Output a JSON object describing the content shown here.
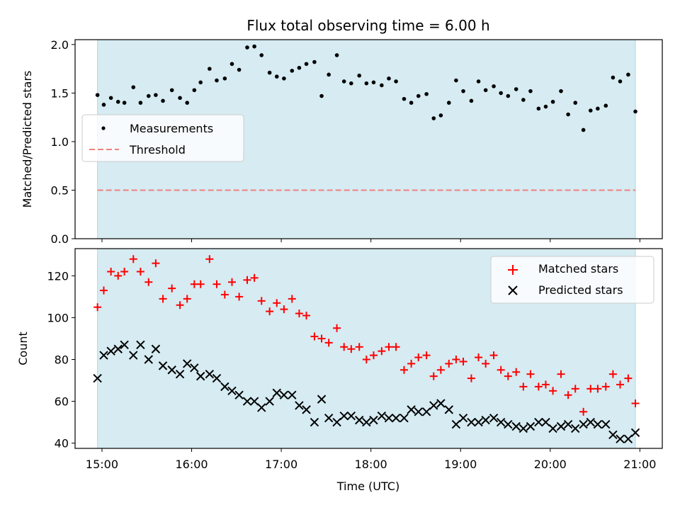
{
  "chart_data": {
    "type": "scatter",
    "title": "Flux total observing time = 6.00 h",
    "shade_color": "#add8e6",
    "time_ticks": [
      "15:00",
      "16:00",
      "17:00",
      "18:00",
      "19:00",
      "20:00",
      "21:00"
    ],
    "time_tick_hours": [
      15,
      16,
      17,
      18,
      19,
      20,
      21
    ],
    "xlabel": "Time (UTC)",
    "xlim_hours": [
      14.7,
      21.25
    ],
    "shade_hours": [
      14.95,
      20.95
    ],
    "top": {
      "ylabel": "Matched/Predicted stars",
      "ylim": [
        0,
        2.05
      ],
      "yticks": [
        0.0,
        0.5,
        1.0,
        1.5,
        2.0
      ],
      "ytick_labels": [
        "0.0",
        "0.5",
        "1.0",
        "1.5",
        "2.0"
      ],
      "threshold": 0.5,
      "threshold_color": "#f08080",
      "legend": [
        "Measurements",
        "Threshold"
      ],
      "x_hours": [
        14.95,
        15.02,
        15.1,
        15.18,
        15.25,
        15.35,
        15.43,
        15.52,
        15.6,
        15.68,
        15.78,
        15.87,
        15.95,
        16.03,
        16.1,
        16.2,
        16.28,
        16.37,
        16.45,
        16.53,
        16.62,
        16.7,
        16.78,
        16.87,
        16.95,
        17.03,
        17.12,
        17.2,
        17.28,
        17.37,
        17.45,
        17.53,
        17.62,
        17.7,
        17.78,
        17.87,
        17.95,
        18.03,
        18.12,
        18.2,
        18.28,
        18.37,
        18.45,
        18.53,
        18.62,
        18.7,
        18.78,
        18.87,
        18.95,
        19.03,
        19.12,
        19.2,
        19.28,
        19.37,
        19.45,
        19.53,
        19.62,
        19.7,
        19.78,
        19.87,
        19.95,
        20.03,
        20.12,
        20.2,
        20.28,
        20.37,
        20.45,
        20.53,
        20.62,
        20.7,
        20.78,
        20.87,
        20.95
      ],
      "ratio": [
        1.48,
        1.38,
        1.45,
        1.41,
        1.4,
        1.56,
        1.4,
        1.47,
        1.48,
        1.42,
        1.53,
        1.45,
        1.4,
        1.53,
        1.61,
        1.75,
        1.63,
        1.65,
        1.8,
        1.74,
        1.97,
        1.98,
        1.89,
        1.71,
        1.67,
        1.65,
        1.73,
        1.76,
        1.8,
        1.82,
        1.47,
        1.69,
        1.89,
        1.62,
        1.6,
        1.68,
        1.6,
        1.61,
        1.58,
        1.65,
        1.62,
        1.44,
        1.4,
        1.47,
        1.49,
        1.24,
        1.27,
        1.4,
        1.63,
        1.52,
        1.42,
        1.62,
        1.53,
        1.57,
        1.5,
        1.47,
        1.54,
        1.43,
        1.52,
        1.34,
        1.36,
        1.41,
        1.52,
        1.28,
        1.4,
        1.12,
        1.32,
        1.34,
        1.37,
        1.66,
        1.62,
        1.69,
        1.31
      ]
    },
    "bottom": {
      "ylabel": "Count",
      "ylim": [
        37.5,
        133
      ],
      "yticks": [
        40,
        60,
        80,
        100,
        120
      ],
      "ytick_labels": [
        "40",
        "60",
        "80",
        "100",
        "120"
      ],
      "legend": [
        "Matched stars",
        "Predicted stars"
      ],
      "matched_color": "#ff0000",
      "predicted_color": "#000000",
      "x_hours": [
        14.95,
        15.02,
        15.1,
        15.18,
        15.25,
        15.35,
        15.43,
        15.52,
        15.6,
        15.68,
        15.78,
        15.87,
        15.95,
        16.03,
        16.1,
        16.2,
        16.28,
        16.37,
        16.45,
        16.53,
        16.62,
        16.7,
        16.78,
        16.87,
        16.95,
        17.03,
        17.12,
        17.2,
        17.28,
        17.37,
        17.45,
        17.53,
        17.62,
        17.7,
        17.78,
        17.87,
        17.95,
        18.03,
        18.12,
        18.2,
        18.28,
        18.37,
        18.45,
        18.53,
        18.62,
        18.7,
        18.78,
        18.87,
        18.95,
        19.03,
        19.12,
        19.2,
        19.28,
        19.37,
        19.45,
        19.53,
        19.62,
        19.7,
        19.78,
        19.87,
        19.95,
        20.03,
        20.12,
        20.2,
        20.28,
        20.37,
        20.45,
        20.53,
        20.62,
        20.7,
        20.78,
        20.87,
        20.95
      ],
      "matched": [
        105,
        113,
        122,
        120,
        122,
        128,
        122,
        117,
        126,
        109,
        114,
        106,
        109,
        116,
        116,
        128,
        116,
        111,
        117,
        110,
        118,
        119,
        108,
        103,
        107,
        104,
        109,
        102,
        101,
        91,
        90,
        88,
        95,
        86,
        85,
        86,
        80,
        82,
        84,
        86,
        86,
        75,
        78,
        81,
        82,
        72,
        75,
        78,
        80,
        79,
        71,
        81,
        78,
        82,
        75,
        72,
        74,
        67,
        73,
        67,
        68,
        65,
        73,
        63,
        66,
        55,
        66,
        66,
        67,
        73,
        68,
        71,
        59
      ],
      "predicted": [
        71,
        82,
        84,
        85,
        87,
        82,
        87,
        80,
        85,
        77,
        75,
        73,
        78,
        76,
        72,
        73,
        71,
        67,
        65,
        63,
        60,
        60,
        57,
        60,
        64,
        63,
        63,
        58,
        56,
        50,
        61,
        52,
        50,
        53,
        53,
        51,
        50,
        51,
        53,
        52,
        52,
        52,
        56,
        55,
        55,
        58,
        59,
        56,
        49,
        52,
        50,
        50,
        51,
        52,
        50,
        49,
        48,
        47,
        48,
        50,
        50,
        47,
        48,
        49,
        47,
        49,
        50,
        49,
        49,
        44,
        42,
        42,
        45
      ]
    }
  }
}
